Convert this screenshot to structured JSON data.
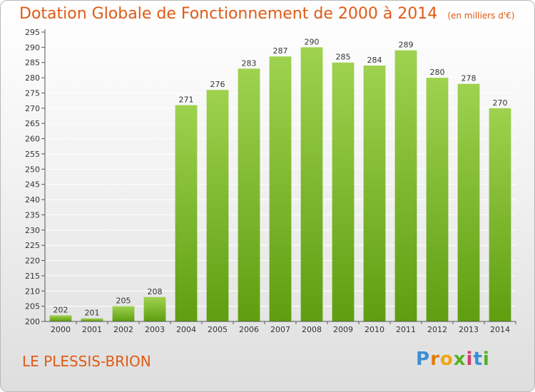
{
  "title": "Dotation Globale de Fonctionnement de 2000 à 2014",
  "subtitle": "(en milliers d'€)",
  "commune": "LE PLESSIS-BRION",
  "logo": {
    "letters": [
      "P",
      "r",
      "o",
      "x",
      "i",
      "t",
      "i"
    ]
  },
  "colors": {
    "title": "#e05a14",
    "bar_light": "#9ed24f",
    "bar_dark": "#5f9e10"
  },
  "chart_data": {
    "type": "bar",
    "title": "Dotation Globale de Fonctionnement de 2000 à 2014",
    "subtitle": "(en milliers d'€)",
    "xlabel": "",
    "ylabel": "",
    "categories": [
      "2000",
      "2001",
      "2002",
      "2003",
      "2004",
      "2005",
      "2006",
      "2007",
      "2008",
      "2009",
      "2010",
      "2011",
      "2012",
      "2013",
      "2014"
    ],
    "values": [
      202,
      201,
      205,
      208,
      271,
      276,
      283,
      287,
      290,
      285,
      284,
      289,
      280,
      278,
      270
    ],
    "ylim": [
      200,
      295
    ],
    "ytick_step": 5,
    "grid": true
  }
}
